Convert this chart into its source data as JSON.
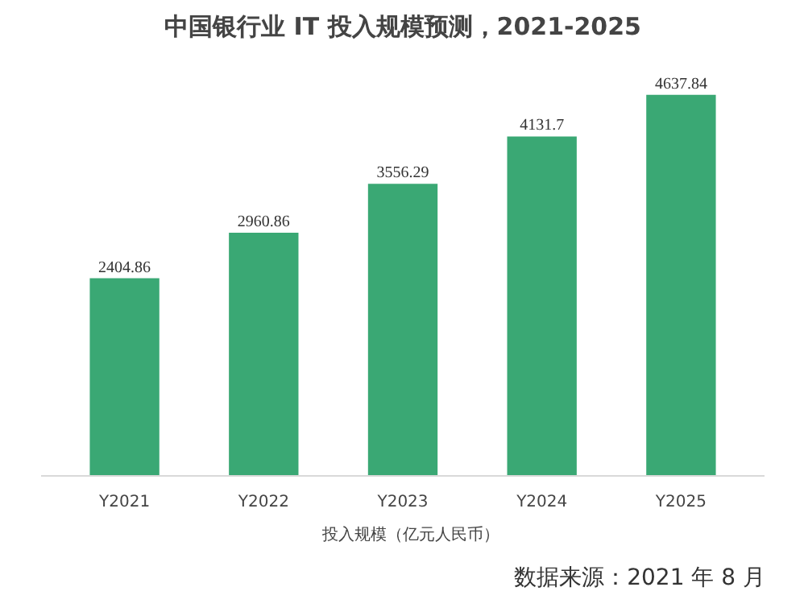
{
  "chart_data": {
    "type": "bar",
    "title": "中国银行业 IT 投入规模预测，2021-2025",
    "categories": [
      "Y2021",
      "Y2022",
      "Y2023",
      "Y2024",
      "Y2025"
    ],
    "series": [
      {
        "name": "投入规模（亿元人民币）",
        "color": "#3aa874",
        "values": [
          2404.86,
          2960.86,
          3556.29,
          4131.7,
          4637.84
        ]
      }
    ],
    "data_labels": true,
    "grid": false,
    "legend": "bottom",
    "tick_labels": "x",
    "annotations": [
      "数据来源：2021 年 8 月"
    ]
  }
}
